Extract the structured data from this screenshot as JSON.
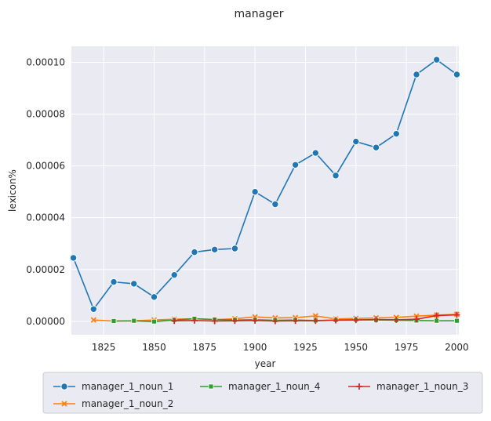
{
  "chart_data": {
    "type": "line",
    "title": "manager",
    "xlabel": "year",
    "ylabel": "lexicon%",
    "xlim": [
      1809,
      2001
    ],
    "ylim": [
      -5.2e-06,
      0.0001062
    ],
    "xticks": [
      1825,
      1850,
      1875,
      1900,
      1925,
      1950,
      1975,
      2000
    ],
    "yticks": [
      0,
      2e-05,
      4e-05,
      6e-05,
      8e-05,
      0.0001
    ],
    "xtick_labels": [
      "1825",
      "1850",
      "1875",
      "1900",
      "1925",
      "1950",
      "1975",
      "2000"
    ],
    "ytick_labels": [
      "0.00000",
      "0.00002",
      "0.00004",
      "0.00006",
      "0.00008",
      "0.00010"
    ],
    "grid": true,
    "legend_position": "bottom",
    "series": [
      {
        "name": "manager_1_noun_1",
        "color": "#1f77b4",
        "marker": "circle",
        "x": [
          1810,
          1820,
          1830,
          1840,
          1850,
          1860,
          1870,
          1880,
          1890,
          1900,
          1910,
          1920,
          1930,
          1940,
          1950,
          1960,
          1970,
          1980,
          1990,
          2000
        ],
        "y": [
          2.45e-05,
          4.7e-06,
          1.52e-05,
          1.45e-05,
          9.4e-06,
          1.79e-05,
          2.67e-05,
          2.77e-05,
          2.81e-05,
          5e-05,
          4.52e-05,
          6.04e-05,
          6.5e-05,
          5.63e-05,
          6.94e-05,
          6.71e-05,
          7.24e-05,
          9.53e-05,
          0.000101,
          9.53e-05
        ]
      },
      {
        "name": "manager_1_noun_2",
        "color": "#ff7f0e",
        "marker": "x",
        "x": [
          1820,
          1830,
          1840,
          1850,
          1860,
          1870,
          1880,
          1890,
          1900,
          1910,
          1920,
          1930,
          1940,
          1950,
          1960,
          1970,
          1980,
          1990,
          2000
        ],
        "y": [
          5e-07,
          1e-07,
          2e-07,
          5e-07,
          8e-07,
          1e-06,
          6e-07,
          1e-06,
          1.7e-06,
          1.3e-06,
          1.4e-06,
          2.1e-06,
          9e-07,
          1.1e-06,
          1.3e-06,
          1.5e-06,
          2e-06,
          2.4e-06,
          2.7e-06
        ]
      },
      {
        "name": "manager_1_noun_4",
        "color": "#2ca02c",
        "marker": "square",
        "x": [
          1830,
          1840,
          1850,
          1860,
          1870,
          1880,
          1890,
          1900,
          1910,
          1920,
          1930,
          1940,
          1950,
          1960,
          1970,
          1980,
          1990,
          2000
        ],
        "y": [
          1e-07,
          2e-07,
          -1e-07,
          5e-07,
          1e-06,
          7e-07,
          5e-07,
          6e-07,
          4e-07,
          5e-07,
          3e-07,
          5e-07,
          6e-07,
          5e-07,
          4e-07,
          3e-07,
          2e-07,
          2e-07
        ]
      },
      {
        "name": "manager_1_noun_3",
        "color": "#d62728",
        "marker": "plus",
        "x": [
          1860,
          1870,
          1880,
          1890,
          1900,
          1910,
          1920,
          1930,
          1940,
          1950,
          1960,
          1970,
          1980,
          1990,
          2000
        ],
        "y": [
          2e-07,
          3e-07,
          1e-07,
          2e-07,
          3e-07,
          1e-07,
          2e-07,
          2e-07,
          4e-07,
          5e-07,
          7e-07,
          6e-07,
          8e-07,
          2.2e-06,
          2.5e-06
        ]
      }
    ]
  }
}
